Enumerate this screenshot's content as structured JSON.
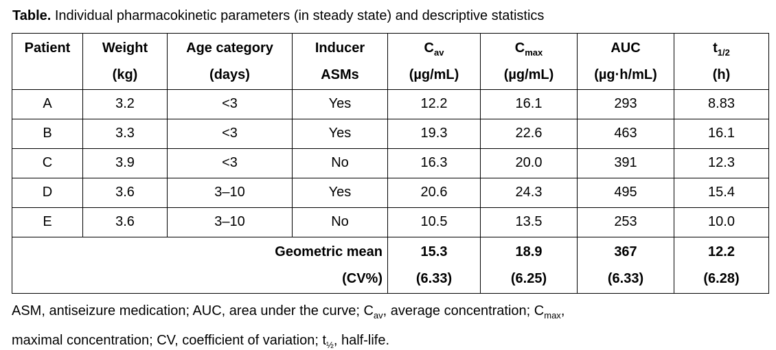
{
  "title": {
    "label": "Table.",
    "text": " Individual pharmacokinetic parameters (in steady state) and descriptive statistics"
  },
  "table": {
    "headers": [
      {
        "main": "Patient",
        "sub": "",
        "unit": ""
      },
      {
        "main": "Weight",
        "sub": "",
        "unit": "(kg)"
      },
      {
        "main": "Age category",
        "sub": "",
        "unit": "(days)"
      },
      {
        "main": "Inducer",
        "sub": "",
        "unit": "ASMs"
      },
      {
        "main": "C",
        "sub": "av",
        "unit": "(µg/mL)"
      },
      {
        "main": "C",
        "sub": "max",
        "unit": "(µg/mL)"
      },
      {
        "main": "AUC",
        "sub": "",
        "unit": "(µg·h/mL)"
      },
      {
        "main": "t",
        "sub": "1/2",
        "unit": "(h)"
      }
    ],
    "rows": [
      {
        "patient": "A",
        "weight": "3.2",
        "age": "<3",
        "inducer": "Yes",
        "cav": "12.2",
        "cmax": "16.1",
        "auc": "293",
        "thalf": "8.83"
      },
      {
        "patient": "B",
        "weight": "3.3",
        "age": "<3",
        "inducer": "Yes",
        "cav": "19.3",
        "cmax": "22.6",
        "auc": "463",
        "thalf": "16.1"
      },
      {
        "patient": "C",
        "weight": "3.9",
        "age": "<3",
        "inducer": "No",
        "cav": "16.3",
        "cmax": "20.0",
        "auc": "391",
        "thalf": "12.3"
      },
      {
        "patient": "D",
        "weight": "3.6",
        "age": "3–10",
        "inducer": "Yes",
        "cav": "20.6",
        "cmax": "24.3",
        "auc": "495",
        "thalf": "15.4"
      },
      {
        "patient": "E",
        "weight": "3.6",
        "age": "3–10",
        "inducer": "No",
        "cav": "10.5",
        "cmax": "13.5",
        "auc": "253",
        "thalf": "10.0"
      }
    ],
    "summary": {
      "label_line1": "Geometric mean",
      "label_line2": "(CV%)",
      "values": [
        {
          "mean": "15.3",
          "cv": "(6.33)"
        },
        {
          "mean": "18.9",
          "cv": "(6.25)"
        },
        {
          "mean": "367",
          "cv": "(6.33)"
        },
        {
          "mean": "12.2",
          "cv": "(6.28)"
        }
      ]
    }
  },
  "footnote": {
    "line1": [
      {
        "t": "ASM, antiseizure medication; AUC, area under the curve; C"
      },
      {
        "t": "av",
        "sub": true
      },
      {
        "t": ", average concentration; C"
      },
      {
        "t": "max",
        "sub": true
      },
      {
        "t": ","
      }
    ],
    "line2": [
      {
        "t": "maximal concentration; CV, coefficient of variation; t"
      },
      {
        "t": "½",
        "sub": true
      },
      {
        "t": ", half-life."
      }
    ]
  }
}
